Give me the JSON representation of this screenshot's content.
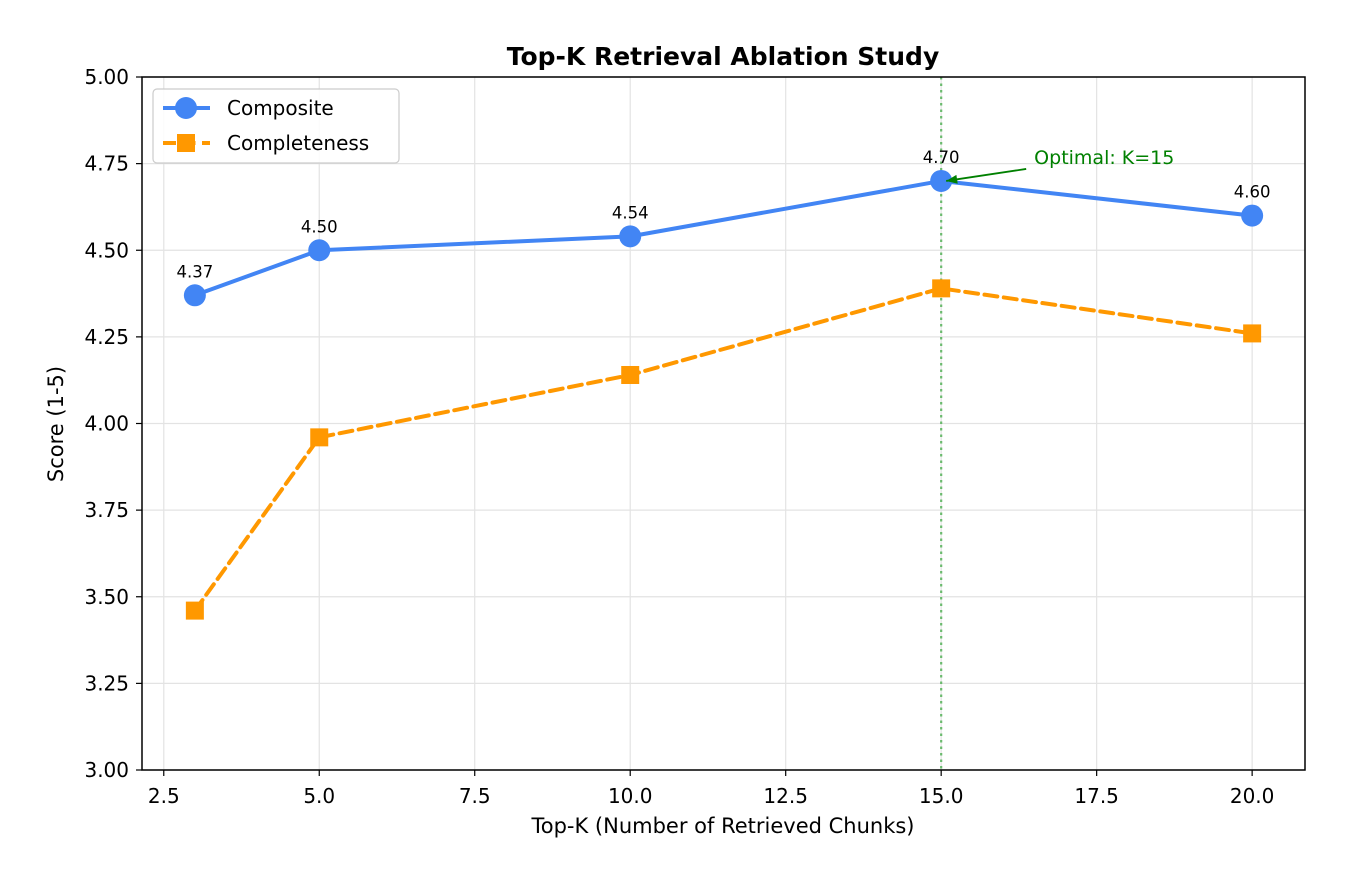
{
  "chart_data": {
    "type": "line",
    "title": "Top-K Retrieval Ablation Study",
    "xlabel": "Top-K (Number of Retrieved Chunks)",
    "ylabel": "Score (1-5)",
    "xlim": [
      2.15,
      20.85
    ],
    "ylim": [
      3.0,
      5.0
    ],
    "xticks": [
      2.5,
      5.0,
      7.5,
      10.0,
      12.5,
      15.0,
      17.5,
      20.0
    ],
    "xtick_labels": [
      "2.5",
      "5.0",
      "7.5",
      "10.0",
      "12.5",
      "15.0",
      "17.5",
      "20.0"
    ],
    "yticks": [
      3.0,
      3.25,
      3.5,
      3.75,
      4.0,
      4.25,
      4.5,
      4.75,
      5.0
    ],
    "ytick_labels": [
      "3.00",
      "3.25",
      "3.50",
      "3.75",
      "4.00",
      "4.25",
      "4.50",
      "4.75",
      "5.00"
    ],
    "grid": true,
    "legend_position": "top-left",
    "x": [
      3,
      5,
      10,
      15,
      20
    ],
    "series": [
      {
        "name": "Composite",
        "values": [
          4.37,
          4.5,
          4.54,
          4.7,
          4.6
        ],
        "labels": [
          "4.37",
          "4.50",
          "4.54",
          "4.70",
          "4.60"
        ],
        "color": "#4285f4",
        "marker": "circle",
        "linestyle": "solid"
      },
      {
        "name": "Completeness",
        "values": [
          3.46,
          3.96,
          4.14,
          4.39,
          4.26
        ],
        "color": "#ff9800",
        "marker": "square",
        "linestyle": "dashed"
      }
    ],
    "reference_line": {
      "x": 15,
      "color": "#4caf50",
      "style": "dotted"
    },
    "annotation": {
      "text": "Optimal: K=15",
      "x": 15,
      "y": 4.7,
      "color": "#008000"
    }
  }
}
